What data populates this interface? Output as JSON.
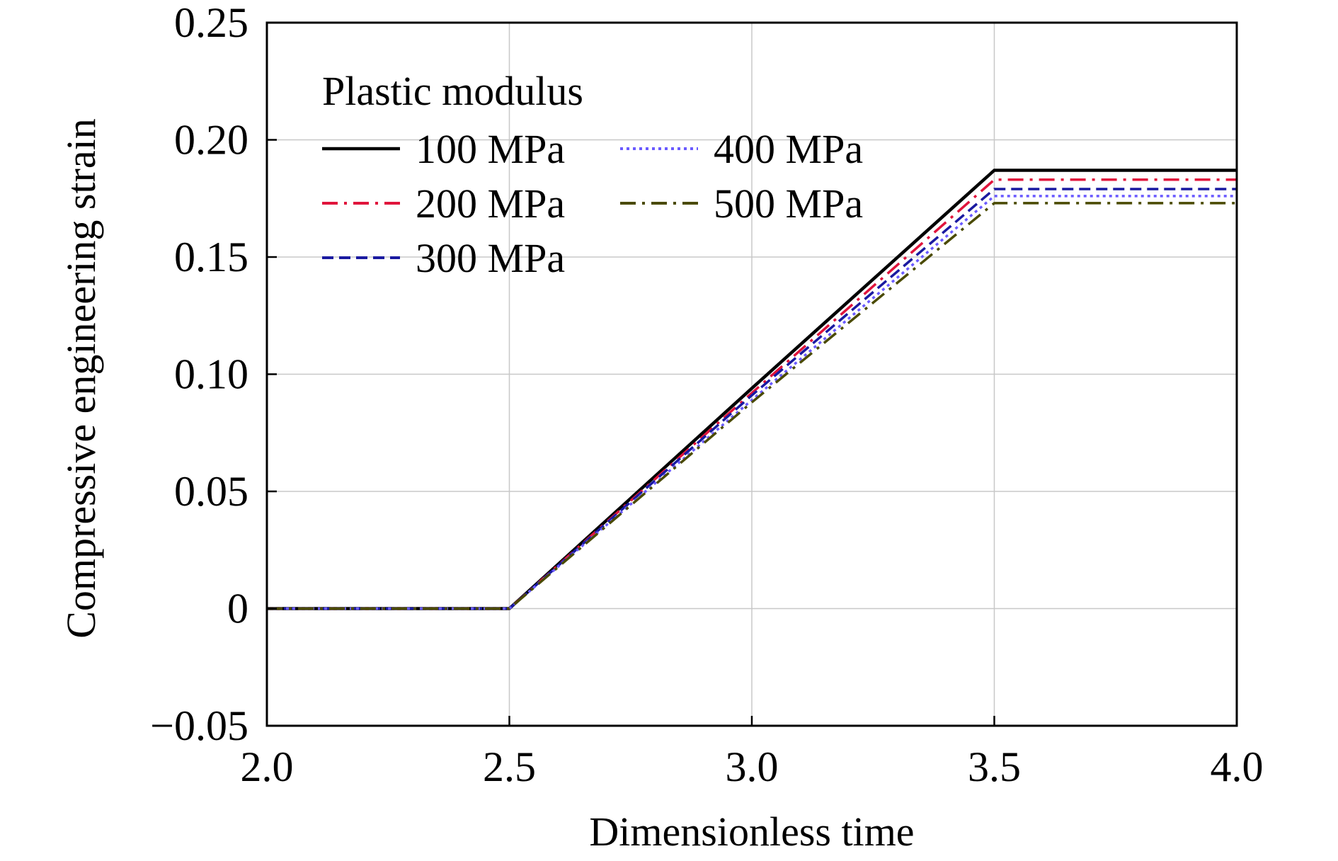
{
  "chart_data": {
    "type": "line",
    "title": "",
    "xlabel": "Dimensionless time",
    "ylabel": "Compressive engineering strain",
    "xlim": [
      2.0,
      4.0
    ],
    "ylim": [
      -0.05,
      0.25
    ],
    "xticks": [
      2.0,
      2.5,
      3.0,
      3.5,
      4.0
    ],
    "xtick_labels": [
      "2.0",
      "2.5",
      "3.0",
      "3.5",
      "4.0"
    ],
    "yticks": [
      -0.05,
      0,
      0.05,
      0.1,
      0.15,
      0.2,
      0.25
    ],
    "ytick_labels": [
      "−0.05",
      "0",
      "0.05",
      "0.10",
      "0.15",
      "0.20",
      "0.25"
    ],
    "grid": true,
    "legend": {
      "title": "Plastic modulus",
      "placement": "top-left",
      "columns": 2
    },
    "series": [
      {
        "name": "100 MPa",
        "color": "#000000",
        "style": "solid",
        "x": [
          2.0,
          2.5,
          3.0,
          3.5,
          4.0
        ],
        "y": [
          0,
          0,
          0.094,
          0.187,
          0.187
        ]
      },
      {
        "name": "200 MPa",
        "color": "#e0143c",
        "style": "dashdot",
        "x": [
          2.0,
          2.5,
          3.0,
          3.5,
          4.0
        ],
        "y": [
          0,
          0,
          0.092,
          0.183,
          0.183
        ]
      },
      {
        "name": "300 MPa",
        "color": "#1a1aa0",
        "style": "dashed",
        "x": [
          2.0,
          2.5,
          3.0,
          3.5,
          4.0
        ],
        "y": [
          0,
          0,
          0.091,
          0.179,
          0.179
        ]
      },
      {
        "name": "400 MPa",
        "color": "#6a5aff",
        "style": "dotted",
        "x": [
          2.0,
          2.5,
          3.0,
          3.5,
          4.0
        ],
        "y": [
          0,
          0,
          0.089,
          0.176,
          0.176
        ]
      },
      {
        "name": "500 MPa",
        "color": "#4a4a00",
        "style": "dashdot",
        "x": [
          2.0,
          2.5,
          3.0,
          3.5,
          4.0
        ],
        "y": [
          0,
          0,
          0.088,
          0.173,
          0.173
        ]
      }
    ]
  }
}
